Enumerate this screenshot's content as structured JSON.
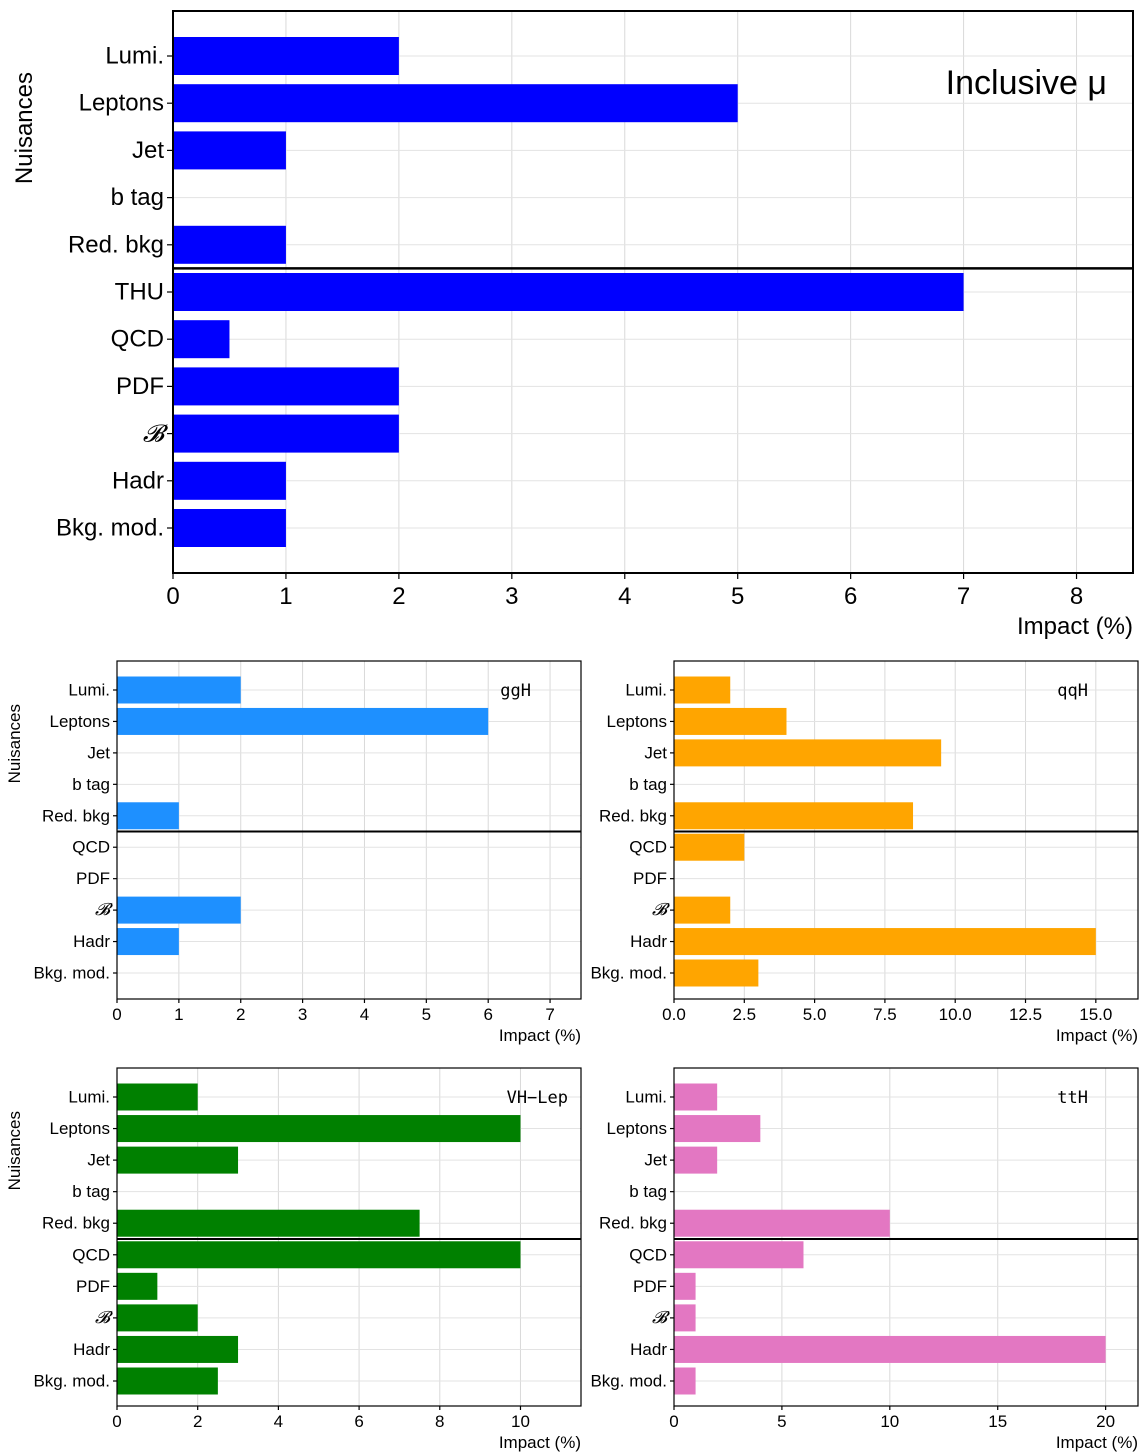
{
  "chart_data": [
    {
      "type": "bar",
      "orientation": "horizontal",
      "title": "",
      "annotation": "Inclusive μ",
      "xlabel": "Impact (%)",
      "ylabel": "Nuisances",
      "xlim": [
        0,
        8.5
      ],
      "xticks": [
        "0",
        "1",
        "2",
        "3",
        "4",
        "5",
        "6",
        "7",
        "8"
      ],
      "color": "#0000ff",
      "grid": true,
      "separator_after": "Red. bkg",
      "categories": [
        "Lumi.",
        "Leptons",
        "Jet",
        "b tag",
        "Red. bkg",
        "THU",
        "QCD",
        "PDF",
        "𝓑",
        "Hadr",
        "Bkg. mod."
      ],
      "values": [
        2,
        5,
        1,
        0,
        1,
        7,
        0.5,
        2,
        2,
        1,
        1
      ]
    },
    {
      "type": "bar",
      "orientation": "horizontal",
      "title": "",
      "annotation": "ggH",
      "xlabel": "Impact (%)",
      "ylabel": "Nuisances",
      "xlim": [
        0,
        7.5
      ],
      "xticks": [
        "0",
        "1",
        "2",
        "3",
        "4",
        "5",
        "6",
        "7"
      ],
      "color": "#1e90ff",
      "grid": true,
      "separator_after": "Red. bkg",
      "categories": [
        "Lumi.",
        "Leptons",
        "Jet",
        "b tag",
        "Red. bkg",
        "QCD",
        "PDF",
        "𝓑",
        "Hadr",
        "Bkg. mod."
      ],
      "values": [
        2,
        6,
        0,
        0,
        1,
        0,
        0,
        2,
        1,
        0
      ]
    },
    {
      "type": "bar",
      "orientation": "horizontal",
      "title": "",
      "annotation": "qqH",
      "xlabel": "Impact (%)",
      "ylabel": "",
      "xlim": [
        0,
        16.5
      ],
      "xticks": [
        "0.0",
        "2.5",
        "5.0",
        "7.5",
        "10.0",
        "12.5",
        "15.0"
      ],
      "color": "#ffa500",
      "grid": true,
      "separator_after": "Red. bkg",
      "categories": [
        "Lumi.",
        "Leptons",
        "Jet",
        "b tag",
        "Red. bkg",
        "QCD",
        "PDF",
        "𝓑",
        "Hadr",
        "Bkg. mod."
      ],
      "values": [
        2,
        4,
        9.5,
        0,
        8.5,
        2.5,
        0,
        2,
        15,
        3
      ]
    },
    {
      "type": "bar",
      "orientation": "horizontal",
      "title": "",
      "annotation": "VH−Lep",
      "xlabel": "Impact (%)",
      "ylabel": "Nuisances",
      "xlim": [
        0,
        11.5
      ],
      "xticks": [
        "0",
        "2",
        "4",
        "6",
        "8",
        "10"
      ],
      "color": "#008000",
      "grid": true,
      "separator_after": "Red. bkg",
      "categories": [
        "Lumi.",
        "Leptons",
        "Jet",
        "b tag",
        "Red. bkg",
        "QCD",
        "PDF",
        "𝓑",
        "Hadr",
        "Bkg. mod."
      ],
      "values": [
        2,
        10,
        3,
        0,
        7.5,
        10,
        1,
        2,
        3,
        2.5
      ]
    },
    {
      "type": "bar",
      "orientation": "horizontal",
      "title": "",
      "annotation": "ttH",
      "xlabel": "Impact (%)",
      "ylabel": "",
      "xlim": [
        0,
        21.5
      ],
      "xticks": [
        "0",
        "5",
        "10",
        "15",
        "20"
      ],
      "color": "#e377c2",
      "grid": true,
      "separator_after": "Red. bkg",
      "categories": [
        "Lumi.",
        "Leptons",
        "Jet",
        "b tag",
        "Red. bkg",
        "QCD",
        "PDF",
        "𝓑",
        "Hadr",
        "Bkg. mod."
      ],
      "values": [
        2,
        4,
        2,
        0,
        10,
        6,
        1,
        1,
        20,
        1
      ]
    }
  ]
}
